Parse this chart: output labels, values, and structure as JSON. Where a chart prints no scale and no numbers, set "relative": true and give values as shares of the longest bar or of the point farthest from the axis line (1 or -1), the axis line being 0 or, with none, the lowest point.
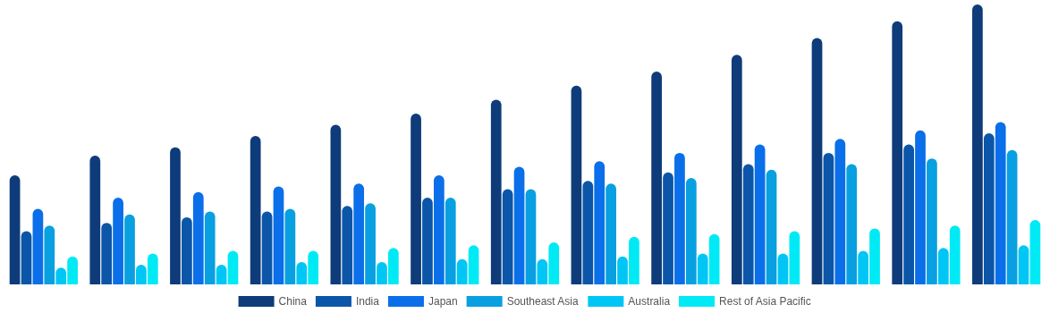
{
  "chart_data": {
    "type": "bar",
    "relative": true,
    "legend": "bottom",
    "categories": [
      null,
      null,
      null,
      null,
      null,
      null,
      null,
      null,
      null,
      null,
      null,
      null,
      null
    ],
    "series": [
      {
        "name": "China",
        "color": "#0e3c7a",
        "values": [
          0.39,
          0.46,
          0.49,
          0.53,
          0.57,
          0.61,
          0.66,
          0.71,
          0.76,
          0.82,
          0.88,
          0.94,
          1
        ]
      },
      {
        "name": "India",
        "color": "#0b56a8",
        "values": [
          0.19,
          0.22,
          0.24,
          0.26,
          0.28,
          0.31,
          0.34,
          0.37,
          0.4,
          0.43,
          0.47,
          0.5,
          0.54
        ]
      },
      {
        "name": "Japan",
        "color": "#0a6fe8",
        "values": [
          0.27,
          0.31,
          0.33,
          0.35,
          0.36,
          0.39,
          0.42,
          0.44,
          0.47,
          0.5,
          0.52,
          0.55,
          0.58
        ]
      },
      {
        "name": "Southeast Asia",
        "color": "#08a0e0",
        "values": [
          0.21,
          0.25,
          0.26,
          0.27,
          0.29,
          0.31,
          0.34,
          0.36,
          0.38,
          0.41,
          0.43,
          0.45,
          0.48
        ]
      },
      {
        "name": "Australia",
        "color": "#00c6f5",
        "values": [
          0.06,
          0.07,
          0.07,
          0.08,
          0.08,
          0.09,
          0.09,
          0.1,
          0.11,
          0.11,
          0.12,
          0.13,
          0.14
        ]
      },
      {
        "name": "Rest of Asia Pacific",
        "color": "#00eaf5",
        "values": [
          0.1,
          0.11,
          0.12,
          0.12,
          0.13,
          0.14,
          0.15,
          0.17,
          0.18,
          0.19,
          0.2,
          0.21,
          0.23
        ]
      }
    ]
  }
}
